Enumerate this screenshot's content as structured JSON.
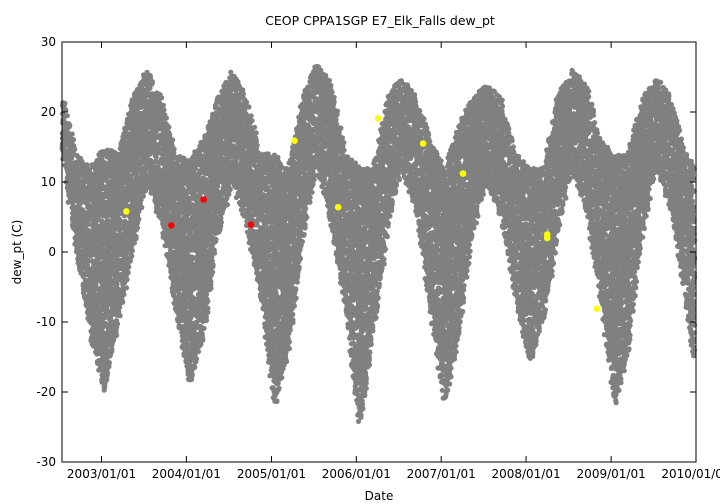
{
  "chart_data": {
    "type": "scatter",
    "title": "CEOP CPPA1SGP E7_Elk_Falls  dew_pt",
    "xlabel": "Date",
    "ylabel": "dew_pt (C)",
    "xlim": [
      "2002/07/15",
      "2010/01/01"
    ],
    "ylim": [
      -30,
      30
    ],
    "x_ticks": [
      "2003/01/01",
      "2004/01/01",
      "2005/01/01",
      "2006/01/01",
      "2007/01/01",
      "2008/01/01",
      "2009/01/01",
      "2010/01/01"
    ],
    "y_ticks": [
      -30,
      -20,
      -10,
      0,
      10,
      20,
      30
    ],
    "grid": false,
    "legend": "none",
    "colors": {
      "hourly": "#808080",
      "red_markers": "#ff0000",
      "yellow_markers": "#ffff00"
    },
    "series": [
      {
        "color": "#808080",
        "description_seasonal_envelope": [
          {
            "x": "2002/07/15",
            "low": 14,
            "high": 23
          },
          {
            "x": "2002/09/15",
            "low": 0,
            "high": 14
          },
          {
            "x": "2002/11/15",
            "low": -12,
            "high": 12
          },
          {
            "x": "2003/01/15",
            "low": -20,
            "high": 15
          },
          {
            "x": "2003/03/15",
            "low": -10,
            "high": 14
          },
          {
            "x": "2003/05/15",
            "low": 0,
            "high": 22
          },
          {
            "x": "2003/07/15",
            "low": 10,
            "high": 26
          },
          {
            "x": "2003/09/15",
            "low": 4,
            "high": 22
          },
          {
            "x": "2003/11/15",
            "low": -8,
            "high": 14
          },
          {
            "x": "2004/01/15",
            "low": -19,
            "high": 13
          },
          {
            "x": "2004/03/15",
            "low": -12,
            "high": 16
          },
          {
            "x": "2004/05/15",
            "low": 2,
            "high": 22
          },
          {
            "x": "2004/07/15",
            "low": 10,
            "high": 26
          },
          {
            "x": "2004/09/15",
            "low": 4,
            "high": 22
          },
          {
            "x": "2004/11/15",
            "low": -6,
            "high": 14
          },
          {
            "x": "2005/01/15",
            "low": -22,
            "high": 14
          },
          {
            "x": "2005/03/15",
            "low": -14,
            "high": 12
          },
          {
            "x": "2005/05/15",
            "low": 2,
            "high": 22
          },
          {
            "x": "2005/07/15",
            "low": 12,
            "high": 27
          },
          {
            "x": "2005/09/15",
            "low": 4,
            "high": 24
          },
          {
            "x": "2005/11/15",
            "low": -8,
            "high": 14
          },
          {
            "x": "2006/01/15",
            "low": -25,
            "high": 12
          },
          {
            "x": "2006/03/15",
            "low": -12,
            "high": 12
          },
          {
            "x": "2006/05/15",
            "low": 3,
            "high": 22
          },
          {
            "x": "2006/07/15",
            "low": 12,
            "high": 25
          },
          {
            "x": "2006/09/15",
            "low": 6,
            "high": 22
          },
          {
            "x": "2006/11/15",
            "low": -8,
            "high": 16
          },
          {
            "x": "2007/01/15",
            "low": -22,
            "high": 12
          },
          {
            "x": "2007/03/15",
            "low": -12,
            "high": 18
          },
          {
            "x": "2007/05/15",
            "low": 2,
            "high": 22
          },
          {
            "x": "2007/07/15",
            "low": 10,
            "high": 24
          },
          {
            "x": "2007/09/15",
            "low": 5,
            "high": 22
          },
          {
            "x": "2007/11/15",
            "low": -6,
            "high": 14
          },
          {
            "x": "2008/01/15",
            "low": -16,
            "high": 12
          },
          {
            "x": "2008/03/15",
            "low": -10,
            "high": 12
          },
          {
            "x": "2008/05/15",
            "low": 2,
            "high": 22
          },
          {
            "x": "2008/07/15",
            "low": 12,
            "high": 26
          },
          {
            "x": "2008/09/15",
            "low": 6,
            "high": 24
          },
          {
            "x": "2008/11/15",
            "low": -6,
            "high": 16
          },
          {
            "x": "2009/01/15",
            "low": -22,
            "high": 14
          },
          {
            "x": "2009/03/15",
            "low": -14,
            "high": 14
          },
          {
            "x": "2009/05/15",
            "low": 2,
            "high": 22
          },
          {
            "x": "2009/07/15",
            "low": 12,
            "high": 25
          },
          {
            "x": "2009/09/15",
            "low": 6,
            "high": 22
          },
          {
            "x": "2009/11/15",
            "low": -6,
            "high": 14
          },
          {
            "x": "2010/01/01",
            "low": -18,
            "high": 12
          }
        ]
      },
      {
        "color": "#ff0000",
        "points": [
          {
            "x": "2003/10/28",
            "y": 3.8
          },
          {
            "x": "2004/03/15",
            "y": 7.5
          },
          {
            "x": "2004/10/05",
            "y": 3.9
          }
        ]
      },
      {
        "color": "#ffff00",
        "points": [
          {
            "x": "2003/04/18",
            "y": 5.8
          },
          {
            "x": "2005/04/10",
            "y": 15.9
          },
          {
            "x": "2005/10/15",
            "y": 6.4
          },
          {
            "x": "2006/04/05",
            "y": 19.1
          },
          {
            "x": "2006/10/15",
            "y": 15.5
          },
          {
            "x": "2007/04/05",
            "y": 11.2
          },
          {
            "x": "2008/04/01",
            "y": 2.5
          },
          {
            "x": "2008/04/01",
            "y": 2.0
          },
          {
            "x": "2008/11/01",
            "y": -8.1
          }
        ]
      }
    ]
  }
}
